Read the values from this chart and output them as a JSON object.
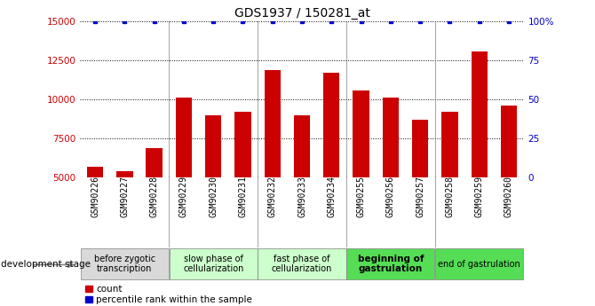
{
  "title": "GDS1937 / 150281_at",
  "samples": [
    "GSM90226",
    "GSM90227",
    "GSM90228",
    "GSM90229",
    "GSM90230",
    "GSM90231",
    "GSM90232",
    "GSM90233",
    "GSM90234",
    "GSM90255",
    "GSM90256",
    "GSM90257",
    "GSM90258",
    "GSM90259",
    "GSM90260"
  ],
  "counts": [
    5700,
    5400,
    6900,
    10100,
    9000,
    9200,
    11900,
    9000,
    11700,
    10600,
    10100,
    8700,
    9200,
    13100,
    9600
  ],
  "percentile": [
    100,
    100,
    100,
    100,
    100,
    100,
    100,
    100,
    100,
    100,
    100,
    100,
    100,
    100,
    100
  ],
  "bar_color": "#cc0000",
  "dot_color": "#0000cc",
  "ylim_left": [
    5000,
    15000
  ],
  "ylim_right": [
    0,
    100
  ],
  "yticks_left": [
    5000,
    7500,
    10000,
    12500,
    15000
  ],
  "yticks_right": [
    0,
    25,
    50,
    75,
    100
  ],
  "stages": [
    {
      "label": "before zygotic\ntranscription",
      "start": 0,
      "end": 3,
      "color": "#d9d9d9",
      "bold": false
    },
    {
      "label": "slow phase of\ncellularization",
      "start": 3,
      "end": 6,
      "color": "#ccffcc",
      "bold": false
    },
    {
      "label": "fast phase of\ncellularization",
      "start": 6,
      "end": 9,
      "color": "#ccffcc",
      "bold": false
    },
    {
      "label": "beginning of\ngastrulation",
      "start": 9,
      "end": 12,
      "color": "#55dd55",
      "bold": true
    },
    {
      "label": "end of gastrulation",
      "start": 12,
      "end": 15,
      "color": "#55dd55",
      "bold": false
    }
  ],
  "stage_label_x": "development stage",
  "legend_count_label": "count",
  "legend_pct_label": "percentile rank within the sample",
  "bg_color": "#ffffff"
}
